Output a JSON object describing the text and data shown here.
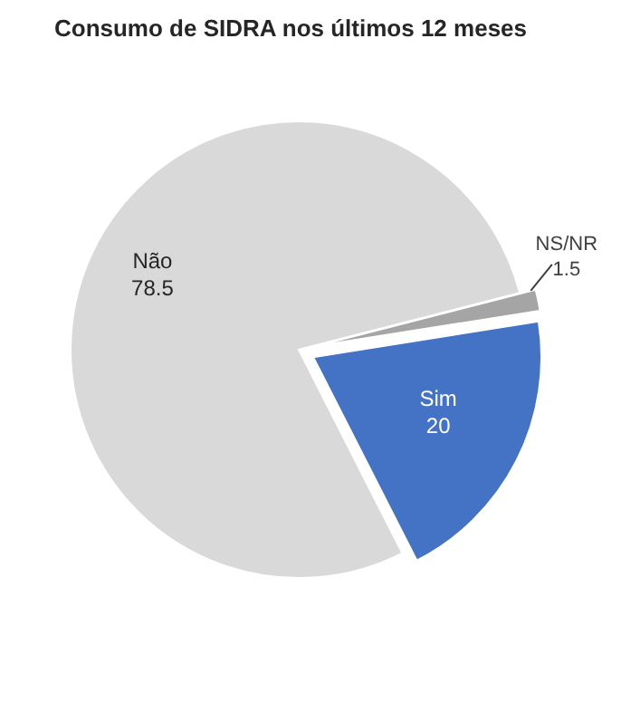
{
  "chart_data": {
    "type": "pie",
    "title": "Consumo de SIDRA nos últimos 12 meses",
    "categories": [
      "Não",
      "Sim",
      "NS/NR"
    ],
    "values": [
      78.5,
      20,
      1.5
    ],
    "colors": [
      "#d9d9d9",
      "#4472c4",
      "#a5a5a5"
    ],
    "data_labels": true
  }
}
